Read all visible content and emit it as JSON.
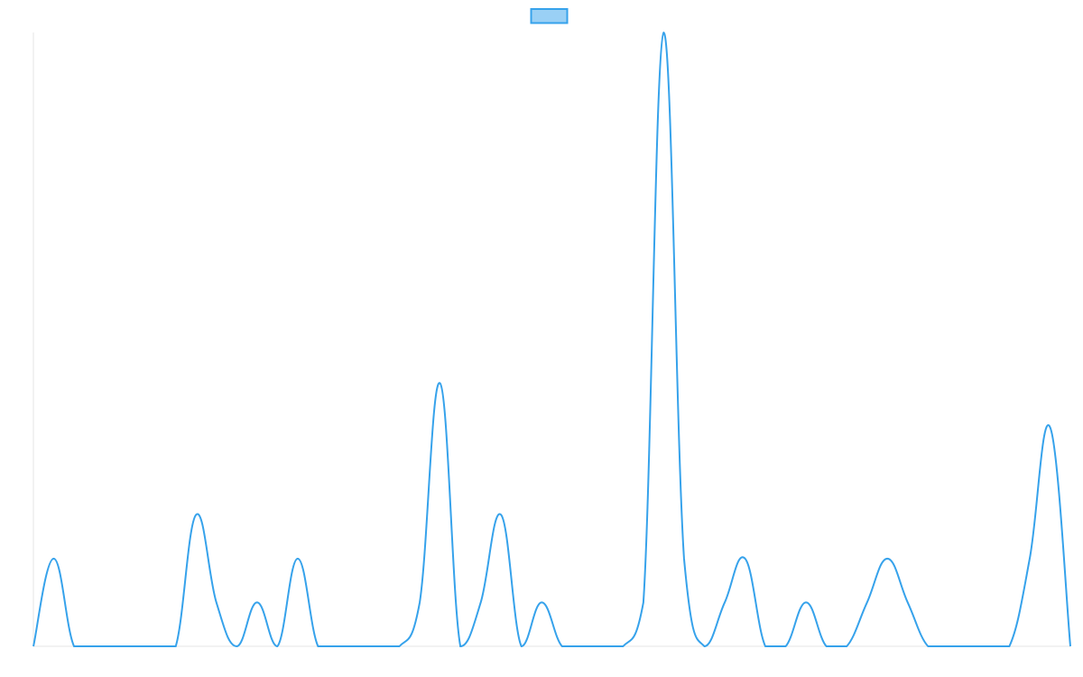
{
  "chart_data": {
    "type": "line",
    "categories": [
      null,
      null,
      null,
      null,
      null,
      null,
      null,
      null,
      null,
      null,
      null,
      null,
      null,
      null,
      null,
      null,
      null,
      null,
      null,
      null,
      null,
      null,
      null,
      null,
      null,
      null,
      null,
      null,
      null,
      null,
      null,
      null,
      null,
      null,
      null,
      null,
      null,
      null,
      null,
      null,
      null,
      null,
      null,
      null,
      null,
      null,
      null,
      null,
      null,
      null,
      null,
      null
    ],
    "series": [
      {
        "color": "#36a2eb",
        "values": [
          0,
          2,
          0,
          0,
          0,
          0,
          0,
          0,
          3,
          1,
          0,
          1,
          0,
          2,
          0,
          0,
          0,
          0,
          0,
          1,
          6,
          0,
          1,
          3,
          0,
          1,
          0,
          0,
          0,
          0,
          1,
          14,
          2,
          0,
          1,
          2,
          0,
          0,
          1,
          0,
          0,
          1,
          2,
          1,
          0,
          0,
          0,
          0,
          0,
          2,
          5,
          0
        ]
      }
    ],
    "ylim": [
      0,
      14
    ],
    "legend": "top"
  }
}
